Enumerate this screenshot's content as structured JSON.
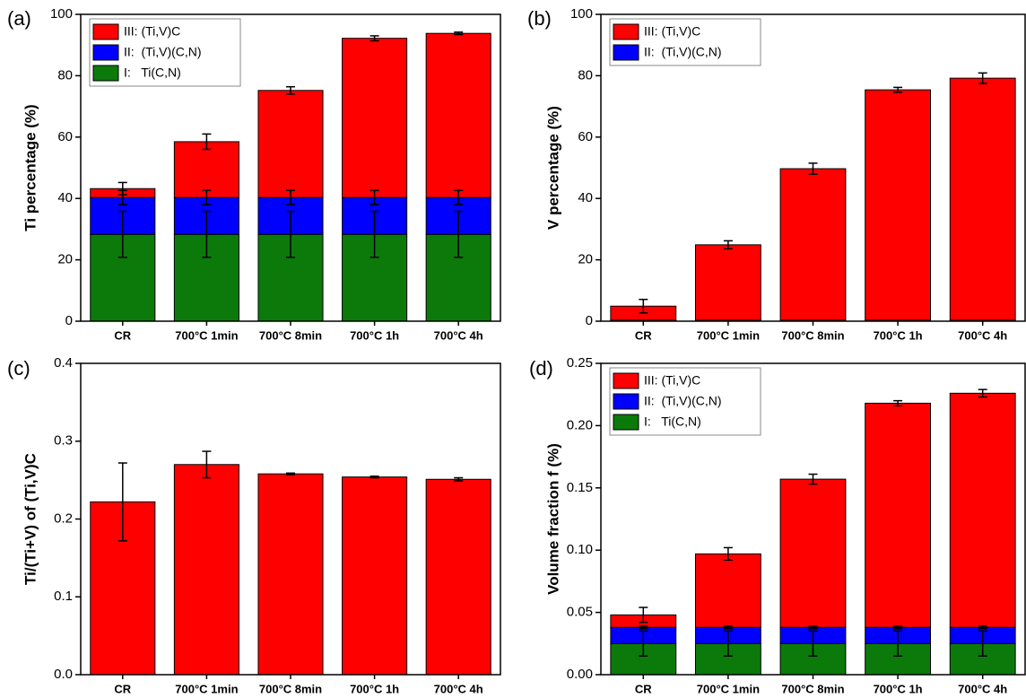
{
  "chart_data": [
    {
      "type": "bar",
      "stacked": true,
      "label": "(a)",
      "ylabel": "Ti percentage (%)",
      "categories": [
        "CR",
        "700°C 1min",
        "700°C 8min",
        "700°C 1h",
        "700°C 4h"
      ],
      "ylim": [
        0,
        100
      ],
      "yticks": [
        0,
        20,
        40,
        60,
        80,
        100
      ],
      "legend": "upper left",
      "series": [
        {
          "name": "I:   Ti(C,N)",
          "color": "#0b7a0b",
          "values": [
            28.3,
            28.3,
            28.3,
            28.3,
            28.3
          ],
          "errors": [
            7.5,
            7.5,
            7.5,
            7.5,
            7.5
          ]
        },
        {
          "name": "II:  (Ti,V)(C,N)",
          "color": "#0000ff",
          "values": [
            12,
            12,
            12,
            12,
            12
          ],
          "errors": [
            2.3,
            2.3,
            2.3,
            2.3,
            2.3
          ]
        },
        {
          "name": "III: (Ti,V)C",
          "color": "#ff0000",
          "values": [
            2.9,
            18.2,
            34.9,
            51.9,
            53.5
          ],
          "errors": [
            2,
            2.5,
            1.2,
            0.8,
            0.4
          ]
        }
      ]
    },
    {
      "type": "bar",
      "stacked": true,
      "label": "(b)",
      "ylabel": "V percentage (%)",
      "categories": [
        "CR",
        "700°C 1min",
        "700°C 8min",
        "700°C 1h",
        "700°C 4h"
      ],
      "ylim": [
        0,
        100
      ],
      "yticks": [
        0,
        20,
        40,
        60,
        80,
        100
      ],
      "legend": "upper left",
      "series": [
        {
          "name": "II:  (Ti,V)(C,N)",
          "color": "#0000ff",
          "values": [
            0.3,
            0.3,
            0.3,
            0.3,
            0.3
          ]
        },
        {
          "name": "III: (Ti,V)C",
          "color": "#ff0000",
          "values": [
            4.6,
            24.6,
            49.4,
            75.1,
            78.9
          ],
          "errors": [
            2.2,
            1.3,
            1.8,
            0.8,
            1.7
          ]
        }
      ]
    },
    {
      "type": "bar",
      "stacked": false,
      "label": "(c)",
      "ylabel": "Ti/(Ti+V) of (Ti,V)C",
      "categories": [
        "CR",
        "700°C 1min",
        "700°C 8min",
        "700°C 1h",
        "700°C 4h"
      ],
      "ylim": [
        0,
        0.4
      ],
      "yticks": [
        {
          "value": 0,
          "label": "0.0"
        },
        0.1,
        0.2,
        0.3,
        0.4
      ],
      "color": "#ff0000",
      "values": [
        0.222,
        0.27,
        0.258,
        0.254,
        0.251
      ],
      "errors": [
        0.05,
        0.017,
        0.001,
        0.001,
        0.002
      ]
    },
    {
      "type": "bar",
      "stacked": true,
      "label": "(d)",
      "ylabel": "Volume fraction f (%)",
      "categories": [
        "CR",
        "700°C 1min",
        "700°C 8min",
        "700°C 1h",
        "700°C 4h"
      ],
      "ylim": [
        0,
        0.25
      ],
      "yticks": [
        {
          "value": 0,
          "label": "0.00"
        },
        0.05,
        {
          "value": 0.1,
          "label": "0.10"
        },
        0.15,
        {
          "value": 0.2,
          "label": "0.20"
        },
        0.25
      ],
      "legend": "upper left",
      "series": [
        {
          "name": "I:   Ti(C,N)",
          "color": "#0b7a0b",
          "values": [
            0.025,
            0.025,
            0.025,
            0.025,
            0.025
          ],
          "errors": [
            0.01,
            0.01,
            0.01,
            0.01,
            0.01
          ]
        },
        {
          "name": "II:  (Ti,V)(C,N)",
          "color": "#0000ff",
          "values": [
            0.013,
            0.013,
            0.013,
            0.013,
            0.013
          ],
          "errors": [
            0.001,
            0.001,
            0.001,
            0.001,
            0.001
          ]
        },
        {
          "name": "III: (Ti,V)C",
          "color": "#ff0000",
          "values": [
            0.01,
            0.059,
            0.119,
            0.18,
            0.188
          ],
          "errors": [
            0.006,
            0.005,
            0.004,
            0.002,
            0.003
          ]
        }
      ]
    }
  ]
}
